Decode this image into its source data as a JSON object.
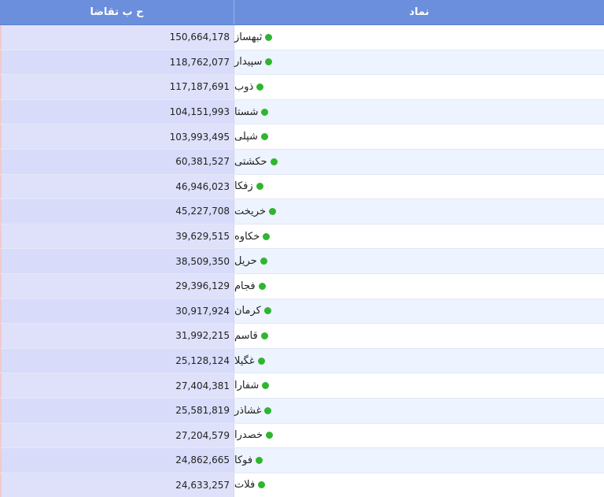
{
  "header": {
    "value_col": "ح ب تقاضا",
    "symbol_col": "نماد"
  },
  "status_color": "#2fb52f",
  "rows": [
    {
      "symbol": "ثبهساز",
      "value": "150,664,178"
    },
    {
      "symbol": "سپیدار",
      "value": "118,762,077"
    },
    {
      "symbol": "ذوب",
      "value": "117,187,691"
    },
    {
      "symbol": "شستا",
      "value": "104,151,993"
    },
    {
      "symbol": "شپلی",
      "value": "103,993,495"
    },
    {
      "symbol": "حکشتی",
      "value": "60,381,527"
    },
    {
      "symbol": "زفکا",
      "value": "46,946,023"
    },
    {
      "symbol": "خریخت",
      "value": "45,227,708"
    },
    {
      "symbol": "خکاوه",
      "value": "39,629,515"
    },
    {
      "symbol": "حریل",
      "value": "38,509,350"
    },
    {
      "symbol": "فجام",
      "value": "29,396,129"
    },
    {
      "symbol": "کرمان",
      "value": "30,917,924"
    },
    {
      "symbol": "قاسم",
      "value": "31,992,215"
    },
    {
      "symbol": "غگیلا",
      "value": "25,128,124"
    },
    {
      "symbol": "شفارا",
      "value": "27,404,381"
    },
    {
      "symbol": "غشاذر",
      "value": "25,581,819"
    },
    {
      "symbol": "خصدرا",
      "value": "27,204,579"
    },
    {
      "symbol": "فوکا",
      "value": "24,862,665"
    },
    {
      "symbol": "فلات",
      "value": "24,633,257"
    }
  ]
}
